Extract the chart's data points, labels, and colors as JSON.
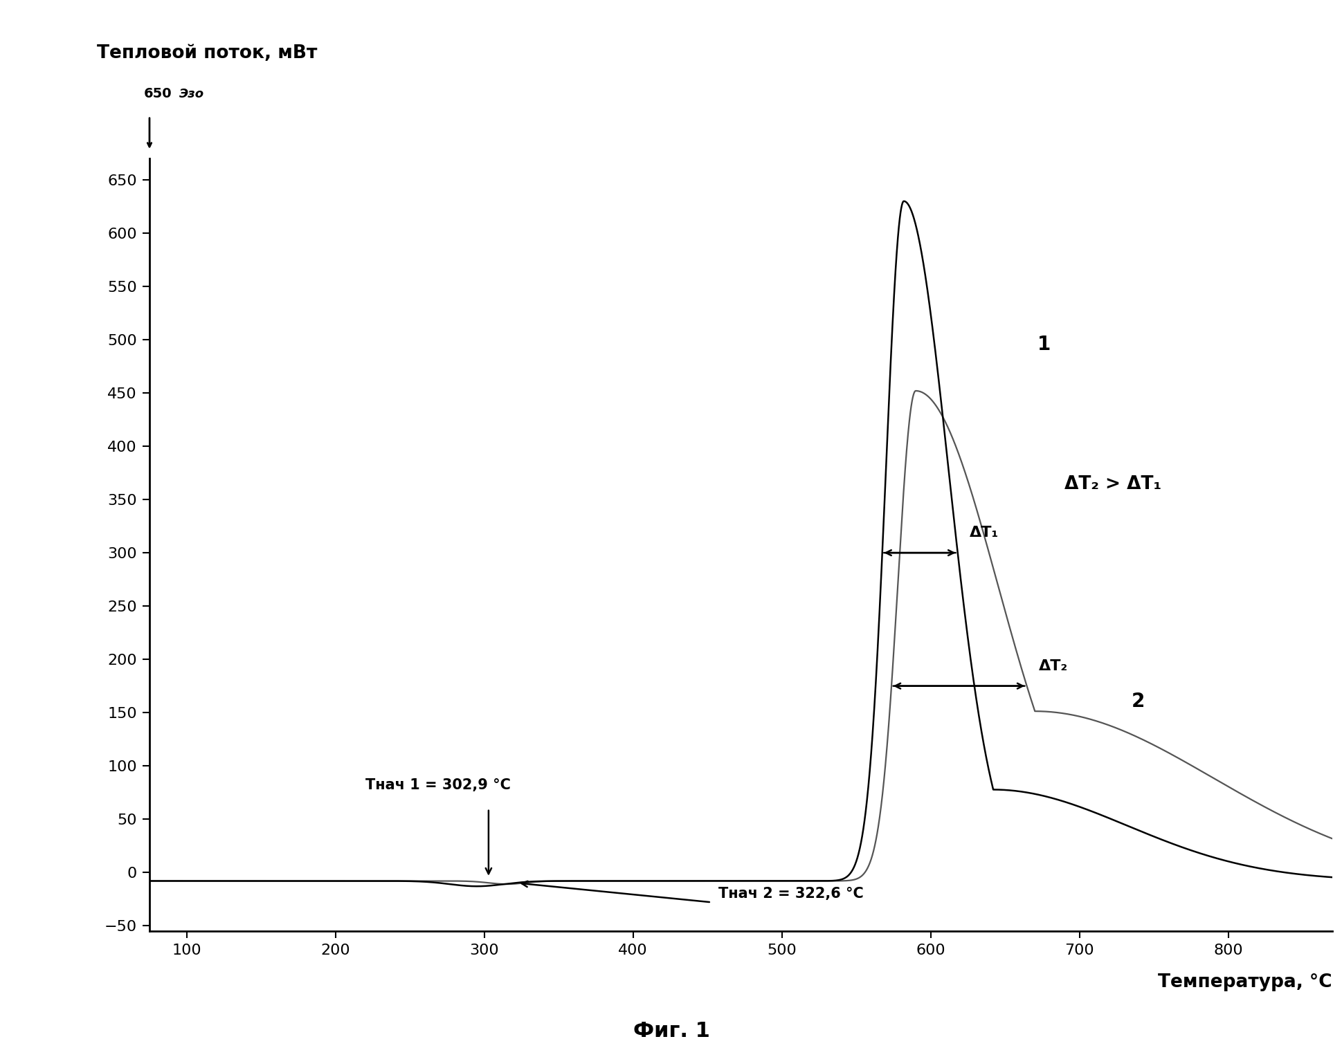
{
  "ylabel": "Тепловой поток, мВт",
  "xlabel": "Температура, °C",
  "fig_caption": "Фиг. 1",
  "exo_label": "Эзо",
  "xlim": [
    75,
    870
  ],
  "ylim": [
    -55,
    670
  ],
  "xticks": [
    100,
    200,
    300,
    400,
    500,
    600,
    700,
    800
  ],
  "yticks": [
    -50,
    0,
    50,
    100,
    150,
    200,
    250,
    300,
    350,
    400,
    450,
    500,
    550,
    600,
    650
  ],
  "curve1_color": "#000000",
  "curve2_color": "#555555",
  "background_color": "#ffffff",
  "label1": "1",
  "label2": "2",
  "annotation_T1": "Tнач 1 = 302,9 °C",
  "annotation_T2": "Tнач 2 = 322,6 °C",
  "annotation_DT1": "ΔT₁",
  "annotation_DT2": "ΔT₂",
  "annotation_compare": "ΔT₂ > ΔT₁",
  "T_nach1": 302.9,
  "T_nach2": 322.6,
  "peak1_x": 582,
  "peak1_y": 630,
  "peak2_x": 590,
  "peak2_y": 460
}
